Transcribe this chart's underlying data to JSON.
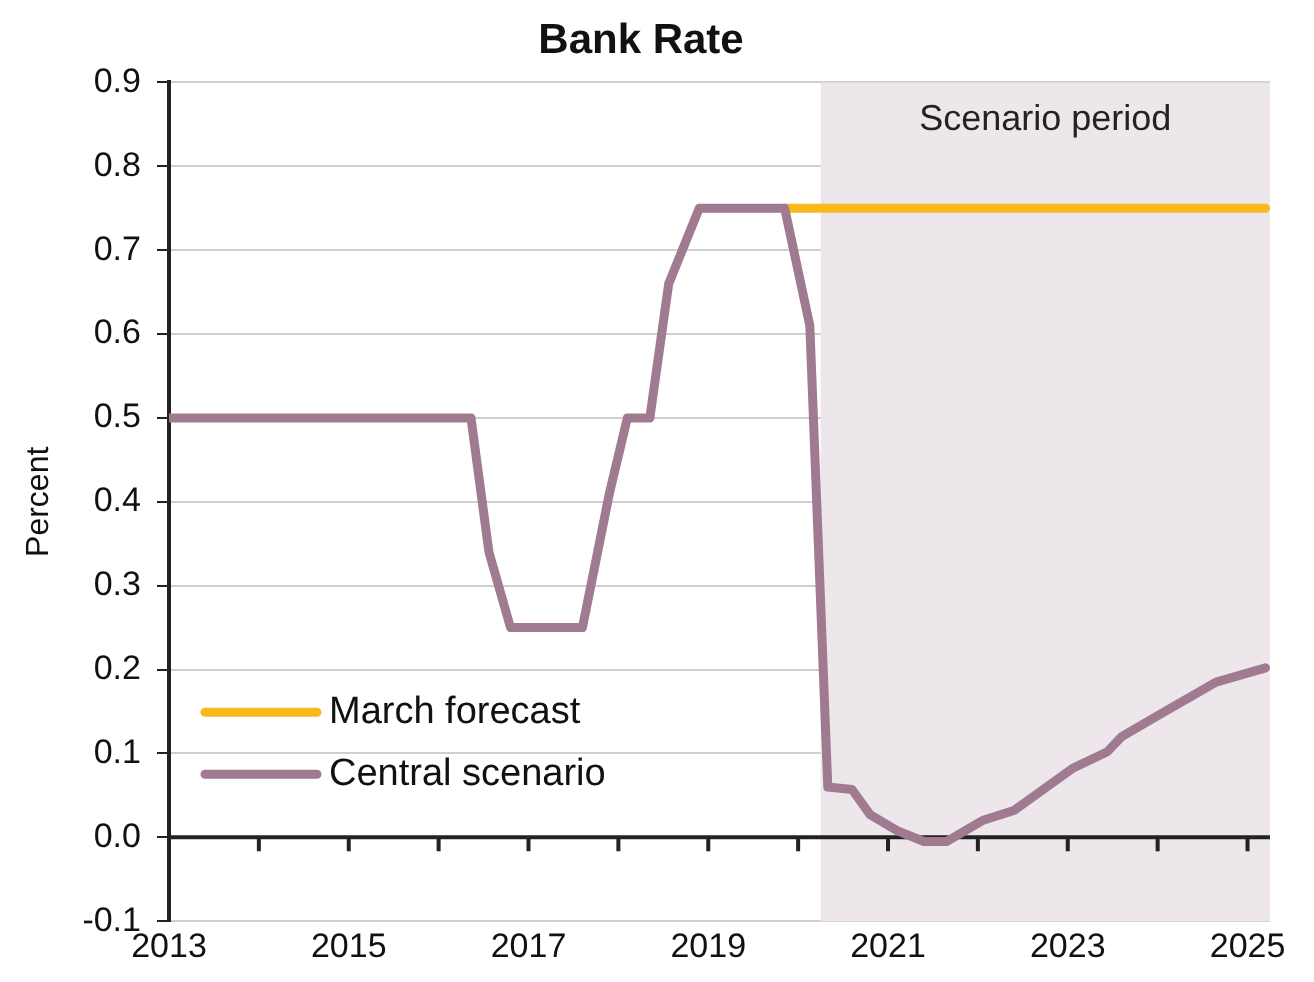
{
  "chart_data": {
    "type": "line",
    "title": "Bank Rate",
    "ylabel": "Percent",
    "xlim": [
      2013,
      2025.25
    ],
    "xticks": [
      2013,
      {
        "value": 2014,
        "label": null
      },
      2015,
      {
        "value": 2016,
        "label": null
      },
      2017,
      {
        "value": 2018,
        "label": null
      },
      2019,
      {
        "value": 2020,
        "label": null
      },
      2021,
      {
        "value": 2022,
        "label": null
      },
      2023,
      {
        "value": 2024,
        "label": null
      },
      2025
    ],
    "ylim": [
      -0.1,
      0.9
    ],
    "yticks": [
      -0.1,
      {
        "value": 0,
        "label": "0.0"
      },
      0.1,
      0.2,
      0.3,
      0.4,
      0.5,
      0.6,
      0.7,
      0.8,
      0.9
    ],
    "grid": "y",
    "legend": "bottom left",
    "line_style": "solid",
    "marker": "none",
    "bands": [
      {
        "axis": "x",
        "from": 2020.25,
        "to": 2025.25,
        "label": "Scenario period",
        "color": "#ede6ea"
      }
    ],
    "series": [
      {
        "name": "March forecast",
        "color": "#f9b91c",
        "x": [
          2019.85,
          2025.2
        ],
        "values": [
          0.75,
          0.75
        ]
      },
      {
        "name": "Central scenario",
        "color": "#a07a90",
        "x": [
          2013,
          2016.36,
          2016.56,
          2016.8,
          2017.6,
          2017.9,
          2018.1,
          2018.35,
          2018.56,
          2018.9,
          2019.85,
          2020.13,
          2020.33,
          2020.6,
          2020.8,
          2021.1,
          2021.4,
          2021.65,
          2022.05,
          2022.4,
          2023.05,
          2023.44,
          2023.6,
          2024.03,
          2024.65,
          2025.2
        ],
        "values": [
          0.5,
          0.5,
          0.34,
          0.25,
          0.25,
          0.41,
          0.5,
          0.5,
          0.66,
          0.75,
          0.75,
          0.61,
          0.06,
          0.057,
          0.027,
          0.008,
          -0.005,
          -0.005,
          0.02,
          0.032,
          0.082,
          0.102,
          0.12,
          0.147,
          0.185,
          0.202
        ]
      }
    ]
  }
}
